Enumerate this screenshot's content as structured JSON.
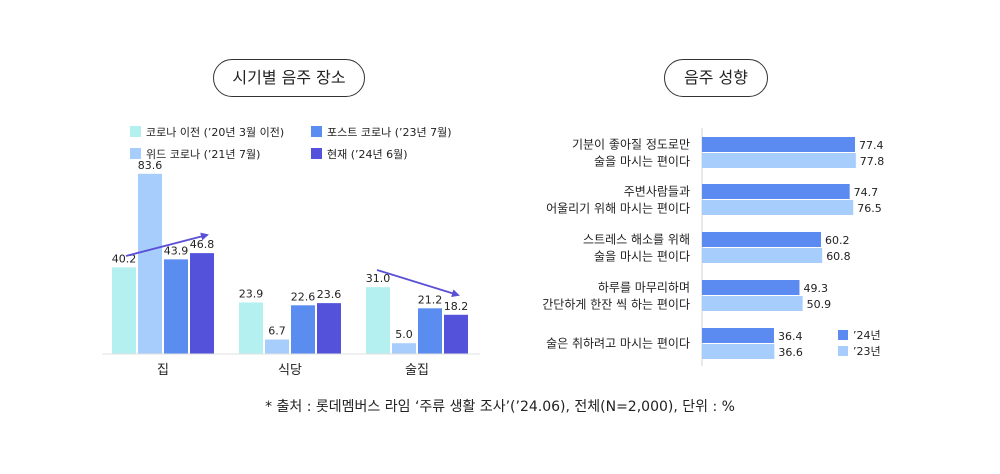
{
  "left_title": "시기별 음주 장소",
  "right_title": "음주 성향",
  "source_note": "* 출처 : 롯데멤버스 라임 ‘주류 생활 조사’(’24.06), 전체(N=2,000), 단위 : %",
  "colors": {
    "covid_before": "#b3f0ef",
    "with_covid": "#a6cdfc",
    "post_covid": "#5b8df0",
    "current": "#5452db",
    "y24": "#5b8af0",
    "y23": "#a6cdfc",
    "trend": "#5a4fd6"
  },
  "chart_data": [
    {
      "type": "bar",
      "title": "시기별 음주 장소",
      "categories": [
        "집",
        "식당",
        "술집"
      ],
      "series": [
        {
          "name": "코로나 이전 (’20년 3월 이전)",
          "values": [
            40.2,
            23.9,
            31.0
          ]
        },
        {
          "name": "위드 코로나 (’21년 7월)",
          "values": [
            83.6,
            6.7,
            5.0
          ]
        },
        {
          "name": "포스트 코로나 (’23년 7월)",
          "values": [
            43.9,
            22.6,
            21.2
          ]
        },
        {
          "name": "현재 (’24년 6월)",
          "values": [
            46.8,
            23.6,
            18.2
          ]
        }
      ],
      "ylim": [
        0,
        90
      ],
      "legend": "top",
      "grid": false
    },
    {
      "type": "bar",
      "orientation": "horizontal",
      "title": "음주 성향",
      "categories": [
        [
          "기분이 좋아질 정도로만",
          "술을 마시는 편이다"
        ],
        [
          "주변사람들과",
          "어울리기 위해 마시는 편이다"
        ],
        [
          "스트레스 해소를 위해",
          "술을 마시는 편이다"
        ],
        [
          "하루를 마무리하며",
          "간단하게 한잔 씩 하는 편이다"
        ],
        [
          "술은 취하려고 마시는 편이다"
        ]
      ],
      "series": [
        {
          "name": "’24년",
          "values": [
            77.4,
            74.7,
            60.2,
            49.3,
            36.4
          ]
        },
        {
          "name": "’23년",
          "values": [
            77.8,
            76.5,
            60.8,
            50.9,
            36.6
          ]
        }
      ],
      "xlim": [
        0,
        100
      ],
      "legend": "bottom-right",
      "grid": false
    }
  ]
}
